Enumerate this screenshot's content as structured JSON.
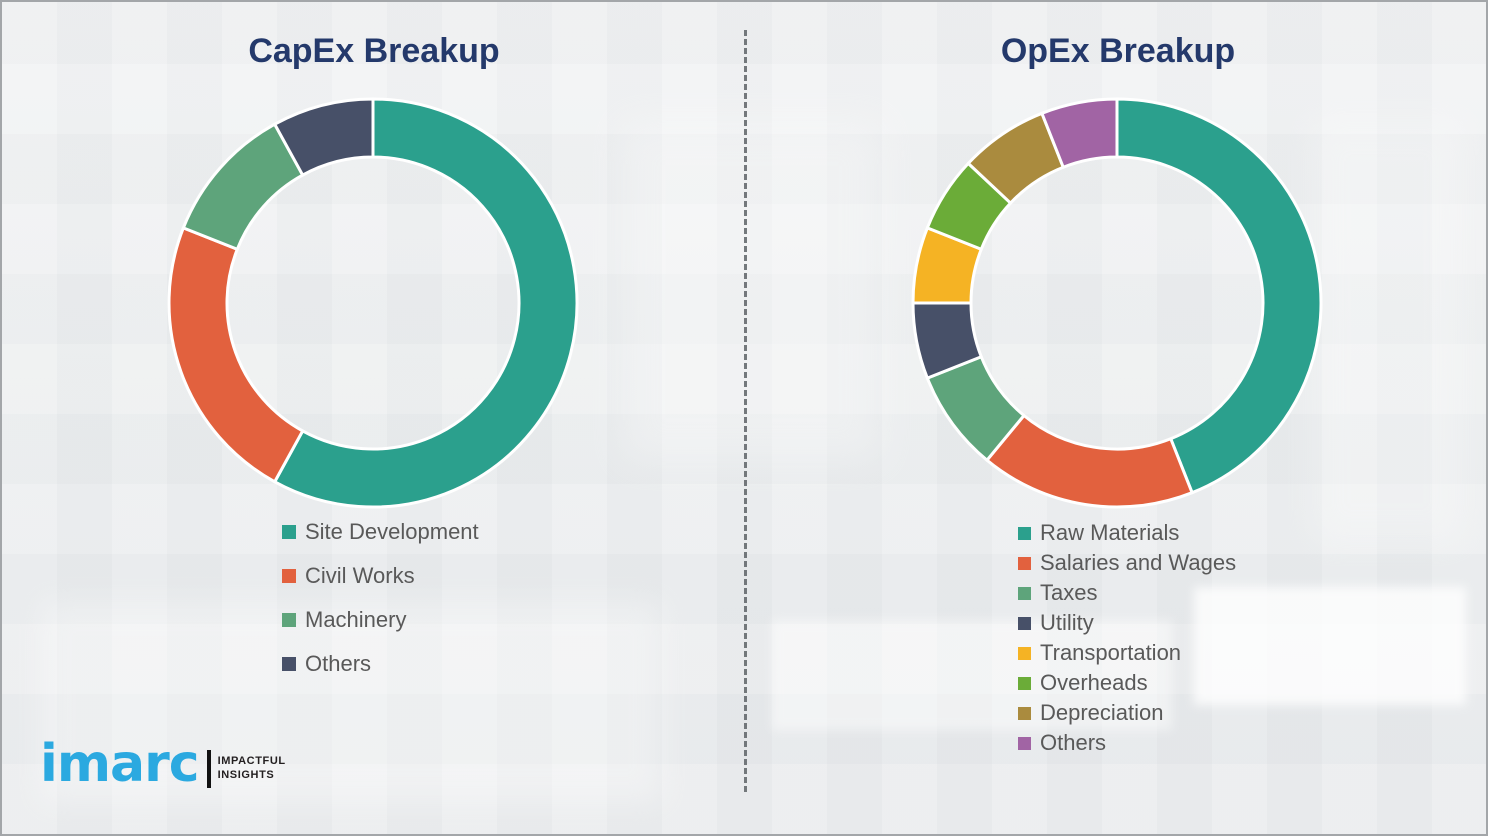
{
  "page": {
    "background_color": "#edeff0",
    "divider_style": "vertical-dashed",
    "divider_color": "#5f6468",
    "title_color": "#24396b",
    "legend_text_color": "#595959"
  },
  "chart_data": [
    {
      "type": "pie",
      "subtype": "donut",
      "title": "CapEx Breakup",
      "categories": [
        "Site Development",
        "Civil Works",
        "Machinery",
        "Others"
      ],
      "values": [
        58,
        23,
        11,
        8
      ],
      "values_note": "percent share estimated from arc angles; no numeric labels shown in image",
      "colors": [
        "#2ba08d",
        "#e2613e",
        "#5ea47b",
        "#475068"
      ],
      "start_angle_deg": 0,
      "direction": "clockwise",
      "legend_position": "below-left",
      "grid": false
    },
    {
      "type": "pie",
      "subtype": "donut",
      "title": "OpEx Breakup",
      "categories": [
        "Raw Materials",
        "Salaries and Wages",
        "Taxes",
        "Utility",
        "Transportation",
        "Overheads",
        "Depreciation",
        "Others"
      ],
      "values": [
        44,
        17,
        8,
        6,
        6,
        6,
        7,
        6
      ],
      "values_note": "percent share estimated from arc angles; no numeric labels shown in image",
      "colors": [
        "#2ba08d",
        "#e2613e",
        "#5ea47b",
        "#475068",
        "#f5b324",
        "#6bac38",
        "#aa8b3e",
        "#a164a4"
      ],
      "start_angle_deg": 0,
      "direction": "clockwise",
      "legend_position": "below-left",
      "grid": false
    }
  ],
  "branding": {
    "logo_text": "imarc",
    "tagline_line1": "IMPACTFUL",
    "tagline_line2": "INSIGHTS",
    "logo_color": "#2ba9e0"
  }
}
